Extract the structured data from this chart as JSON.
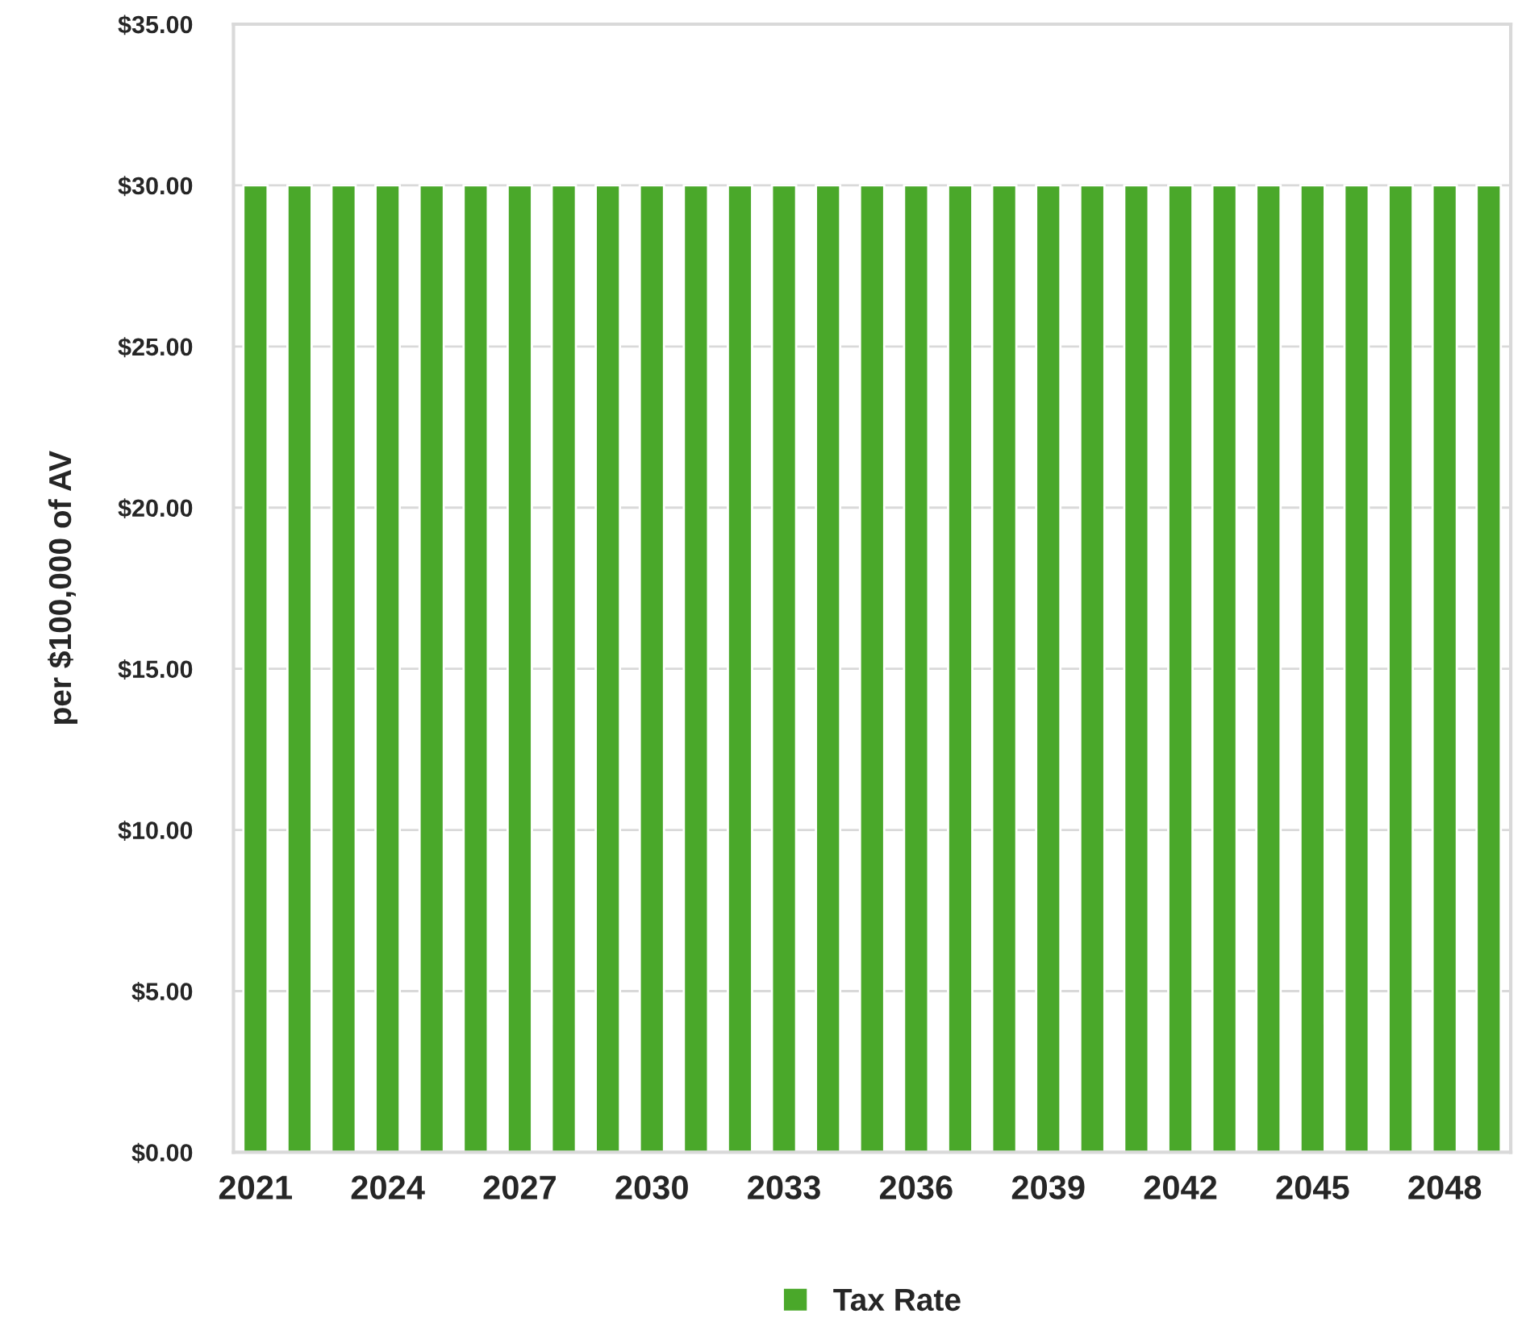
{
  "chart_data": {
    "type": "bar",
    "ylabel": "per $100,000 of AV",
    "categories": [
      "2021",
      null,
      null,
      "2024",
      null,
      null,
      "2027",
      null,
      null,
      "2030",
      null,
      null,
      "2033",
      null,
      null,
      "2036",
      null,
      null,
      "2039",
      null,
      null,
      "2042",
      null,
      null,
      "2045",
      null,
      null,
      "2048",
      null
    ],
    "series": [
      {
        "name": "Tax Rate",
        "color": "#4aa82a",
        "values": [
          30,
          30,
          30,
          30,
          30,
          30,
          30,
          30,
          30,
          30,
          30,
          30,
          30,
          30,
          30,
          30,
          30,
          30,
          30,
          30,
          30,
          30,
          30,
          30,
          30,
          30,
          30,
          30,
          30
        ]
      }
    ],
    "ylim": [
      0,
      35
    ],
    "yticks": [
      {
        "value": 0,
        "label": "$0.00"
      },
      {
        "value": 5,
        "label": "$5.00"
      },
      {
        "value": 10,
        "label": "$10.00"
      },
      {
        "value": 15,
        "label": "$15.00"
      },
      {
        "value": 20,
        "label": "$20.00"
      },
      {
        "value": 25,
        "label": "$25.00"
      },
      {
        "value": 30,
        "label": "$30.00"
      },
      {
        "value": 35,
        "label": "$35.00"
      }
    ],
    "grid": "y",
    "legend": "bottom"
  }
}
